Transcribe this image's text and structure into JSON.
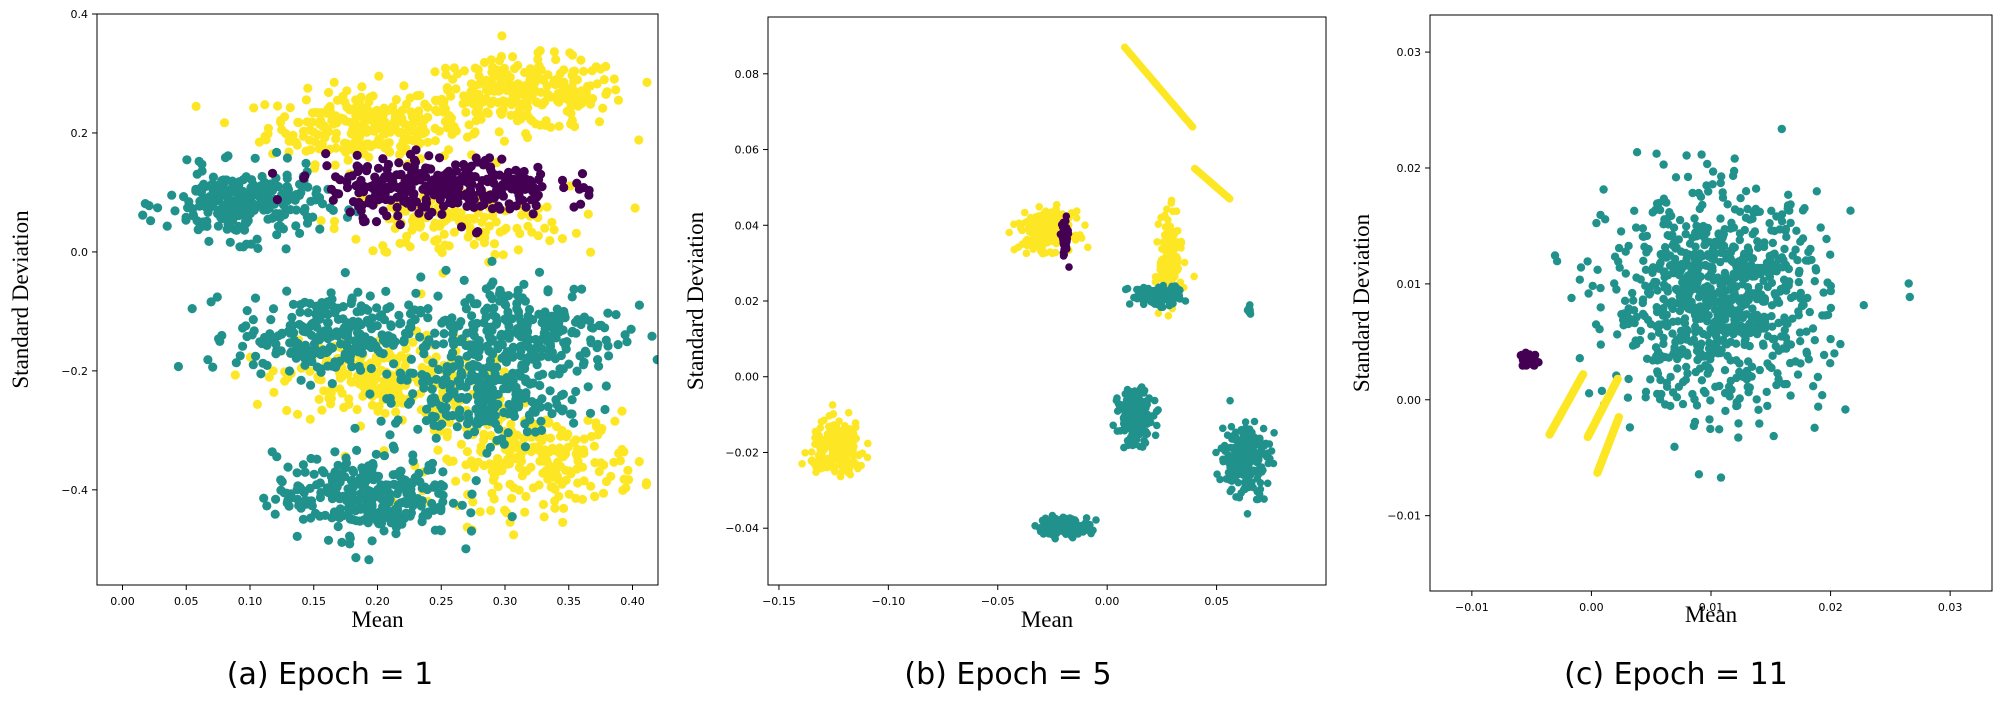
{
  "colors": {
    "teal": "#21918c",
    "yellow": "#fde725",
    "purple": "#440154"
  },
  "chart_data": [
    {
      "type": "scatter",
      "caption": "(a) Epoch = 1",
      "xlabel": "Mean",
      "ylabel": "Standard Deviation",
      "xlim": [
        -0.02,
        0.42
      ],
      "ylim": [
        -0.56,
        0.4
      ],
      "xticks": [
        {
          "value": 0.0,
          "label": "0.00"
        },
        {
          "value": 0.05,
          "label": "0.05"
        },
        {
          "value": 0.1,
          "label": "0.10"
        },
        {
          "value": 0.15,
          "label": "0.15"
        },
        {
          "value": 0.2,
          "label": "0.20"
        },
        {
          "value": 0.25,
          "label": "0.25"
        },
        {
          "value": 0.3,
          "label": "0.30"
        },
        {
          "value": 0.35,
          "label": "0.35"
        },
        {
          "value": 0.4,
          "label": "0.40"
        }
      ],
      "yticks": [
        {
          "value": 0.4,
          "label": "0.4"
        },
        {
          "value": 0.2,
          "label": "0.2"
        },
        {
          "value": 0.0,
          "label": "0.0"
        },
        {
          "value": -0.2,
          "label": "−0.2"
        },
        {
          "value": -0.4,
          "label": "−0.4"
        }
      ],
      "clusters": [
        {
          "color": "yellow",
          "cx": 0.19,
          "cy": 0.21,
          "sx": 0.038,
          "sy": 0.03,
          "count": 260
        },
        {
          "color": "yellow",
          "cx": 0.315,
          "cy": 0.265,
          "sx": 0.04,
          "sy": 0.03,
          "count": 260
        },
        {
          "color": "yellow",
          "cx": 0.26,
          "cy": 0.05,
          "sx": 0.045,
          "sy": 0.03,
          "count": 150
        },
        {
          "color": "yellow",
          "cx": 0.205,
          "cy": -0.215,
          "sx": 0.04,
          "sy": 0.035,
          "count": 240
        },
        {
          "color": "yellow",
          "cx": 0.325,
          "cy": -0.35,
          "sx": 0.04,
          "sy": 0.04,
          "count": 240
        },
        {
          "color": "teal",
          "cx": 0.095,
          "cy": 0.08,
          "sx": 0.03,
          "sy": 0.03,
          "count": 260
        },
        {
          "color": "teal",
          "cx": 0.16,
          "cy": -0.14,
          "sx": 0.035,
          "sy": 0.035,
          "count": 260
        },
        {
          "color": "teal",
          "cx": 0.31,
          "cy": -0.14,
          "sx": 0.04,
          "sy": 0.05,
          "count": 300
        },
        {
          "color": "teal",
          "cx": 0.28,
          "cy": -0.25,
          "sx": 0.035,
          "sy": 0.035,
          "count": 200
        },
        {
          "color": "teal",
          "cx": 0.19,
          "cy": -0.41,
          "sx": 0.035,
          "sy": 0.035,
          "count": 300
        },
        {
          "color": "purple",
          "cx": 0.25,
          "cy": 0.11,
          "sx": 0.045,
          "sy": 0.025,
          "count": 320
        }
      ]
    },
    {
      "type": "scatter",
      "caption": "(b) Epoch = 5",
      "xlabel": "Mean",
      "ylabel": "Standard Deviation",
      "xlim": [
        -0.155,
        0.1
      ],
      "ylim": [
        -0.055,
        0.095
      ],
      "xticks": [
        {
          "value": -0.15,
          "label": "−0.15"
        },
        {
          "value": -0.1,
          "label": "−0.10"
        },
        {
          "value": -0.05,
          "label": "−0.05"
        },
        {
          "value": 0.0,
          "label": "0.00"
        },
        {
          "value": 0.05,
          "label": "0.05"
        }
      ],
      "yticks": [
        {
          "value": 0.08,
          "label": "0.08"
        },
        {
          "value": 0.06,
          "label": "0.06"
        },
        {
          "value": 0.04,
          "label": "0.04"
        },
        {
          "value": 0.02,
          "label": "0.02"
        },
        {
          "value": 0.0,
          "label": "0.00"
        },
        {
          "value": -0.02,
          "label": "−0.02"
        },
        {
          "value": -0.04,
          "label": "−0.04"
        }
      ],
      "clusters": [
        {
          "color": "yellow",
          "cx": -0.123,
          "cy": -0.019,
          "sx": 0.006,
          "sy": 0.0035,
          "count": 220
        },
        {
          "color": "yellow",
          "cx": -0.028,
          "cy": 0.0385,
          "sx": 0.006,
          "sy": 0.0025,
          "count": 200
        },
        {
          "color": "purple",
          "cx": -0.0195,
          "cy": 0.0365,
          "sx": 0.0008,
          "sy": 0.0025,
          "count": 70
        },
        {
          "color": "yellow",
          "cx": 0.029,
          "cy": 0.0315,
          "sx": 0.0025,
          "sy": 0.0055,
          "count": 150
        },
        {
          "color": "teal",
          "cx": 0.022,
          "cy": 0.0215,
          "sx": 0.006,
          "sy": 0.0013,
          "count": 110
        },
        {
          "color": "teal",
          "cx": 0.0655,
          "cy": 0.0175,
          "sx": 0.0006,
          "sy": 0.0006,
          "count": 8
        },
        {
          "color": "teal",
          "cx": 0.013,
          "cy": -0.0105,
          "sx": 0.004,
          "sy": 0.0035,
          "count": 170
        },
        {
          "color": "teal",
          "cx": -0.02,
          "cy": -0.0395,
          "sx": 0.006,
          "sy": 0.0012,
          "count": 140
        },
        {
          "color": "teal",
          "cx": 0.063,
          "cy": -0.0215,
          "sx": 0.0055,
          "sy": 0.005,
          "count": 220
        }
      ],
      "lines": [
        {
          "color": "yellow",
          "x0": 0.008,
          "y0": 0.087,
          "x1": 0.039,
          "y1": 0.066
        },
        {
          "color": "yellow",
          "x0": 0.04,
          "y0": 0.055,
          "x1": 0.056,
          "y1": 0.047
        }
      ]
    },
    {
      "type": "scatter",
      "caption": "(c) Epoch = 11",
      "xlabel": "Mean",
      "ylabel": "Standard Deviation",
      "xlim": [
        -0.0135,
        0.0335
      ],
      "ylim": [
        -0.0165,
        0.0332
      ],
      "xticks": [
        {
          "value": -0.01,
          "label": "−0.01"
        },
        {
          "value": 0.0,
          "label": "0.00"
        },
        {
          "value": 0.01,
          "label": "0.01"
        },
        {
          "value": 0.02,
          "label": "0.02"
        },
        {
          "value": 0.03,
          "label": "0.03"
        }
      ],
      "yticks": [
        {
          "value": 0.03,
          "label": "0.03"
        },
        {
          "value": 0.02,
          "label": "0.02"
        },
        {
          "value": 0.01,
          "label": "0.01"
        },
        {
          "value": 0.0,
          "label": "0.00"
        },
        {
          "value": -0.01,
          "label": "−0.01"
        }
      ],
      "clusters": [
        {
          "color": "teal",
          "cx": 0.0105,
          "cy": 0.0085,
          "sx": 0.0045,
          "sy": 0.0045,
          "count": 900
        },
        {
          "color": "purple",
          "cx": -0.0053,
          "cy": 0.0034,
          "sx": 0.0004,
          "sy": 0.0003,
          "count": 40
        }
      ],
      "lines": [
        {
          "color": "yellow",
          "x0": -0.0035,
          "y0": -0.003,
          "x1": -0.0007,
          "y1": 0.0022
        },
        {
          "color": "yellow",
          "x0": -0.0003,
          "y0": -0.0032,
          "x1": 0.0022,
          "y1": 0.0018
        },
        {
          "color": "yellow",
          "x0": 0.0005,
          "y0": -0.0063,
          "x1": 0.0023,
          "y1": -0.0015
        }
      ]
    }
  ]
}
